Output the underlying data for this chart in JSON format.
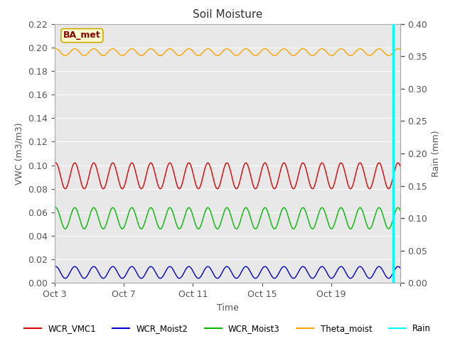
{
  "title": "Soil Moisture",
  "xlabel": "Time",
  "ylabel_left": "VWC (m3/m3)",
  "ylabel_right": "Rain (mm)",
  "xlim_start": 0,
  "xlim_end": 20,
  "ylim_left": [
    0.0,
    0.22
  ],
  "ylim_right": [
    0.0,
    0.4
  ],
  "xtick_positions": [
    0,
    4,
    8,
    12,
    16,
    20
  ],
  "xtick_labels": [
    "Oct 3",
    "Oct 7",
    "Oct 11",
    "Oct 15",
    "Oct 19",
    ""
  ],
  "yticks_left": [
    0.0,
    0.02,
    0.04,
    0.06,
    0.08,
    0.1,
    0.12,
    0.14,
    0.16,
    0.18,
    0.2,
    0.22
  ],
  "yticks_right": [
    0.0,
    0.05,
    0.1,
    0.15,
    0.2,
    0.25,
    0.3,
    0.35,
    0.4
  ],
  "bg_color": "#e8e8e8",
  "annotation_text": "BA_met",
  "annotation_color": "#8b0000",
  "annotation_bg": "#ffffd0",
  "cyan_line_x": 19.6,
  "series": {
    "WCR_VMC1": {
      "color": "#dd0000",
      "base": 0.091,
      "amplitude": 0.011,
      "period": 1.1,
      "phase": 1.2
    },
    "WCR_Moist2": {
      "color": "#0000cc",
      "base": 0.009,
      "amplitude": 0.005,
      "period": 1.1,
      "phase": 1.2
    },
    "WCR_Moist3": {
      "color": "#00bb00",
      "base": 0.055,
      "amplitude": 0.009,
      "period": 1.1,
      "phase": 1.2
    },
    "Theta_moist": {
      "color": "#ffa500",
      "base": 0.196,
      "amplitude": 0.003,
      "period": 1.1,
      "phase": 1.2
    },
    "Rain": {
      "color": "#00ffff",
      "value": 0.0
    }
  }
}
